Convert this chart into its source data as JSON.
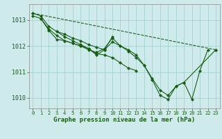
{
  "title": "Graphe pression niveau de la mer (hPa)",
  "background_color": "#ceeaea",
  "grid_color": "#aad4d4",
  "line_color": "#1a5c1a",
  "marker_color": "#1a5c1a",
  "xlim": [
    -0.5,
    23.5
  ],
  "ylim": [
    1009.6,
    1013.6
  ],
  "yticks": [
    1010,
    1011,
    1012,
    1013
  ],
  "xticks": [
    0,
    1,
    2,
    3,
    4,
    5,
    6,
    7,
    8,
    9,
    10,
    11,
    12,
    13,
    14,
    15,
    16,
    17,
    18,
    19,
    20,
    21,
    22,
    23
  ],
  "series": [
    {
      "x": [
        0,
        1,
        2,
        3,
        4,
        5,
        6,
        7,
        8,
        9,
        10,
        11,
        12,
        13,
        14,
        15,
        16,
        17,
        18,
        19,
        23
      ],
      "y": [
        1013.25,
        1013.15,
        1012.75,
        1012.55,
        1012.45,
        1012.3,
        1012.2,
        1012.05,
        1011.95,
        1011.85,
        1012.15,
        1012.0,
        1011.85,
        1011.65,
        1011.25,
        1010.75,
        1010.3,
        1010.1,
        1010.45,
        1010.6,
        1011.85
      ],
      "dashed": false
    },
    {
      "x": [
        0,
        1,
        2,
        3,
        4,
        5,
        6,
        7,
        8,
        9,
        10,
        11,
        12,
        13
      ],
      "y": [
        1013.15,
        1013.05,
        1012.6,
        1012.25,
        1012.2,
        1012.1,
        1012.0,
        1011.9,
        1011.7,
        1011.65,
        1011.55,
        1011.35,
        1011.15,
        1011.05
      ],
      "dashed": false
    },
    {
      "x": [
        1,
        2,
        3,
        4,
        5,
        6,
        7,
        8,
        9,
        10,
        11,
        12,
        13,
        14,
        15,
        16,
        17,
        18,
        19,
        20,
        21,
        22
      ],
      "y": [
        1013.05,
        1012.65,
        1012.4,
        1012.2,
        1012.1,
        1012.0,
        1011.85,
        1011.75,
        1011.9,
        1012.3,
        1012.0,
        1011.8,
        1011.55,
        1011.25,
        1010.7,
        1010.1,
        1009.95,
        1010.45,
        1010.6,
        1009.95,
        1011.05,
        1011.85
      ],
      "dashed": false
    },
    {
      "x": [
        3,
        4,
        5,
        6,
        7,
        8,
        9,
        10
      ],
      "y": [
        1012.55,
        1012.35,
        1012.2,
        1012.05,
        1011.9,
        1011.65,
        1011.85,
        1012.35
      ],
      "dashed": false
    },
    {
      "x": [
        0,
        23
      ],
      "y": [
        1013.25,
        1011.85
      ],
      "dashed": true
    }
  ]
}
